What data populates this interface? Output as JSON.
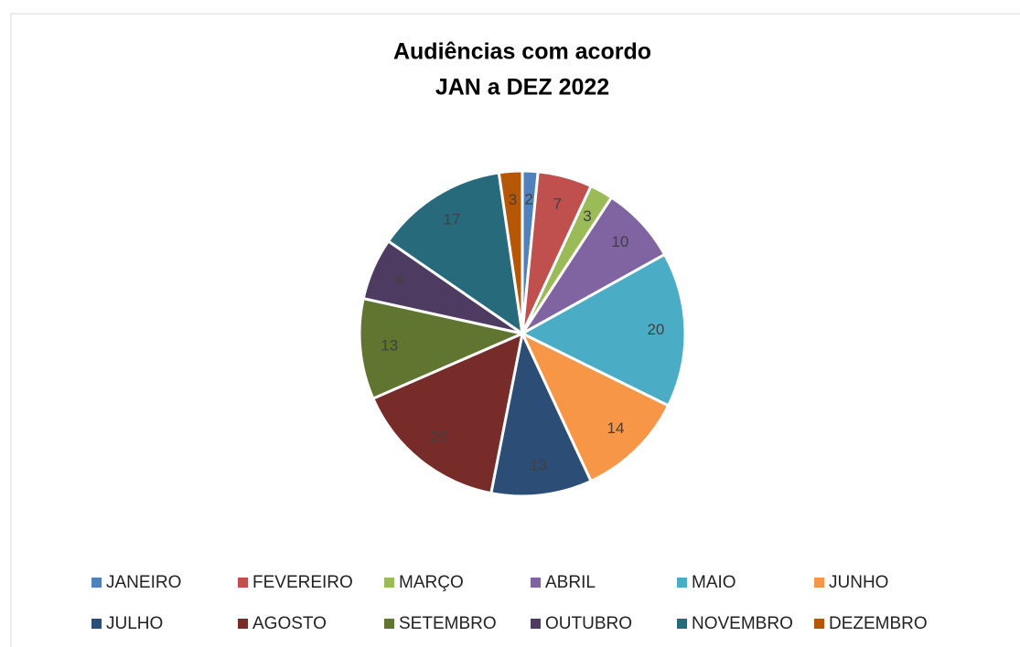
{
  "chart_data": {
    "type": "pie",
    "title": "Audiências com acordo",
    "subtitle": "JAN a DEZ 2022",
    "categories": [
      "JANEIRO",
      "FEVEREIRO",
      "MARÇO",
      "ABRIL",
      "MAIO",
      "JUNHO",
      "JULHO",
      "AGOSTO",
      "SETEMBRO",
      "OUTUBRO",
      "NOVEMBRO",
      "DEZEMBRO"
    ],
    "values": [
      2,
      7,
      3,
      10,
      20,
      14,
      13,
      20,
      13,
      8,
      17,
      3
    ],
    "colors": [
      "#4f81bd",
      "#c0504d",
      "#9bbb59",
      "#8064a2",
      "#4bacc6",
      "#f79646",
      "#2c4d75",
      "#772c2a",
      "#5f7530",
      "#4d3b62",
      "#276a7c",
      "#b65708"
    ],
    "legend": "bottom"
  }
}
